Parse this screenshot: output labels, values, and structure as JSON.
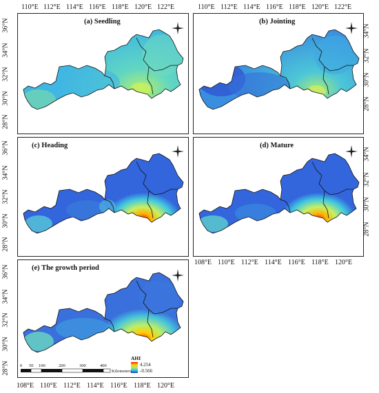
{
  "panels": [
    {
      "id": "a",
      "title": "(a) Seedling"
    },
    {
      "id": "b",
      "title": "(b) Jointing"
    },
    {
      "id": "c",
      "title": "(c) Heading"
    },
    {
      "id": "d",
      "title": "(d) Mature"
    },
    {
      "id": "e",
      "title": "(e) The growth period"
    }
  ],
  "axes": {
    "top_ticks_a": [
      "110°E",
      "112°E",
      "114°E",
      "116°E",
      "118°E",
      "120°E",
      "122°E"
    ],
    "top_ticks_b": [
      "110°E",
      "112°E",
      "114°E",
      "116°E",
      "118°E",
      "120°E",
      "122°E"
    ],
    "bottom_ticks_d": [
      "108°E",
      "110°E",
      "112°E",
      "114°E",
      "116°E",
      "118°E",
      "120°E"
    ],
    "bottom_ticks_e": [
      "108°E",
      "110°E",
      "112°E",
      "114°E",
      "116°E",
      "118°E",
      "120°E"
    ],
    "left_ticks_a": [
      "36°N",
      "34°N",
      "32°N",
      "30°N",
      "28°N"
    ],
    "left_ticks_c": [
      "36°N",
      "34°N",
      "32°N",
      "30°N",
      "28°N"
    ],
    "left_ticks_e": [
      "36°N",
      "34°N",
      "32°N",
      "30°N",
      "28°N"
    ],
    "right_ticks_b": [
      "34°N",
      "32°N",
      "30°N",
      "28°N"
    ],
    "right_ticks_d": [
      "34°N",
      "32°N",
      "30°N",
      "28°N"
    ]
  },
  "legend": {
    "title": "AHI",
    "max": "4.254",
    "min": "-0.566"
  },
  "scale_bar": {
    "labels": [
      "0",
      "50",
      "100",
      "200",
      "300",
      "400"
    ],
    "unit": "Kilometers"
  },
  "colors": {
    "low": "#2233cc",
    "mid": "#33ccdd",
    "high": "#ff2200"
  }
}
